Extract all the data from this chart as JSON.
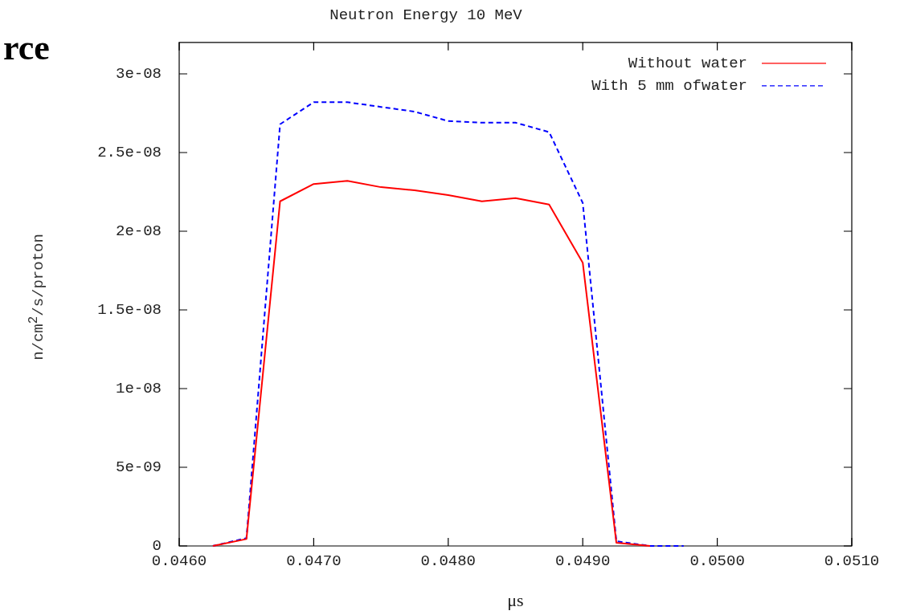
{
  "chart_data": {
    "type": "line",
    "title": "Neutron Energy 10 MeV",
    "xlabel": "μs",
    "ylabel": "n/cm$^{2}$/s/proton",
    "annotations": [
      "rce"
    ],
    "xlim": [
      0.046,
      0.051
    ],
    "xticks": [
      {
        "value": 0.046,
        "label": "0.0460"
      },
      {
        "value": 0.047,
        "label": "0.0470"
      },
      {
        "value": 0.048,
        "label": "0.0480"
      },
      {
        "value": 0.049,
        "label": "0.0490"
      },
      {
        "value": 0.05,
        "label": "0.0500"
      },
      {
        "value": 0.051,
        "label": "0.0510"
      }
    ],
    "ylim": [
      0,
      3.2e-08
    ],
    "yticks": [
      0,
      {
        "value": 5e-09,
        "label": "5e-09"
      },
      {
        "value": 1e-08,
        "label": "1e-08"
      },
      {
        "value": 1.5e-08,
        "label": "1.5e-08"
      },
      {
        "value": 2e-08,
        "label": "2e-08"
      },
      {
        "value": 2.5e-08,
        "label": "2.5e-08"
      },
      {
        "value": 3e-08,
        "label": "3e-08"
      }
    ],
    "grid": false,
    "legend": "top right",
    "marker": "none",
    "series": [
      {
        "name": "Without water",
        "color": "#ff0000",
        "line_style": "solid",
        "x": [
          0.04625,
          0.0465,
          0.04675,
          0.047,
          0.04725,
          0.0475,
          0.04775,
          0.048,
          0.04825,
          0.0485,
          0.04875,
          0.049,
          0.04925,
          0.0495
        ],
        "values": [
          0,
          4.4e-10,
          2.19e-08,
          2.3e-08,
          2.32e-08,
          2.28e-08,
          2.26e-08,
          2.23e-08,
          2.19e-08,
          2.21e-08,
          2.17e-08,
          1.8e-08,
          2e-10,
          0
        ]
      },
      {
        "name": "With 5 mm ofwater",
        "color": "#0000ff",
        "line_style": "dashed",
        "x": [
          0.04625,
          0.0465,
          0.04675,
          0.047,
          0.04725,
          0.0475,
          0.04775,
          0.048,
          0.04825,
          0.0485,
          0.04875,
          0.049,
          0.04925,
          0.0495,
          0.04975
        ],
        "values": [
          0,
          5e-10,
          2.68e-08,
          2.82e-08,
          2.82e-08,
          2.79e-08,
          2.76e-08,
          2.7e-08,
          2.69e-08,
          2.69e-08,
          2.63e-08,
          2.18e-08,
          3e-10,
          0,
          0
        ]
      }
    ]
  }
}
